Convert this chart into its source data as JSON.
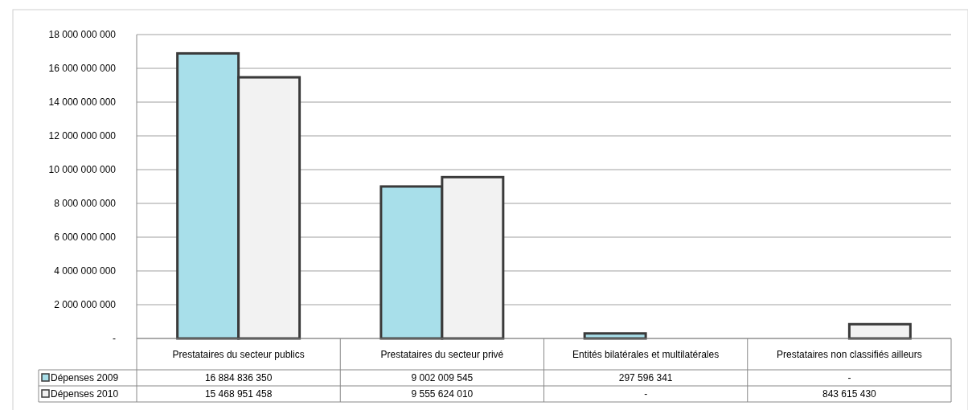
{
  "chart_data": {
    "type": "bar",
    "categories": [
      "Prestataires du secteur publics",
      "Prestataires du secteur privé",
      "Entités bilatérales et multilatérales",
      "Prestataires non classifiés ailleurs"
    ],
    "series": [
      {
        "name": "Dépenses 2009",
        "color": "#a8dfea",
        "values": [
          16884836350,
          9002009545,
          297596341,
          0
        ],
        "value_labels": [
          "16 884 836 350",
          "9 002 009 545",
          "297 596 341",
          "-"
        ]
      },
      {
        "name": "Dépenses 2010",
        "color": "#f2f2f2",
        "values": [
          15468951458,
          9555624010,
          0,
          843615430
        ],
        "value_labels": [
          "15 468 951 458",
          "9 555 624 010",
          "-",
          "843 615 430"
        ]
      }
    ],
    "ylim": [
      0,
      18000000000
    ],
    "yticks": [
      {
        "value": 0,
        "label": "-"
      },
      {
        "value": 2000000000,
        "label": "2 000 000 000"
      },
      {
        "value": 4000000000,
        "label": "4 000 000 000"
      },
      {
        "value": 6000000000,
        "label": "6 000 000 000"
      },
      {
        "value": 8000000000,
        "label": "8 000 000 000"
      },
      {
        "value": 10000000000,
        "label": "10 000 000 000"
      },
      {
        "value": 12000000000,
        "label": "12 000 000 000"
      },
      {
        "value": 14000000000,
        "label": "14 000 000 000"
      },
      {
        "value": 16000000000,
        "label": "16 000 000 000"
      },
      {
        "value": 18000000000,
        "label": "18 000 000 000"
      }
    ],
    "grid": "y",
    "legend": "bottom left"
  }
}
